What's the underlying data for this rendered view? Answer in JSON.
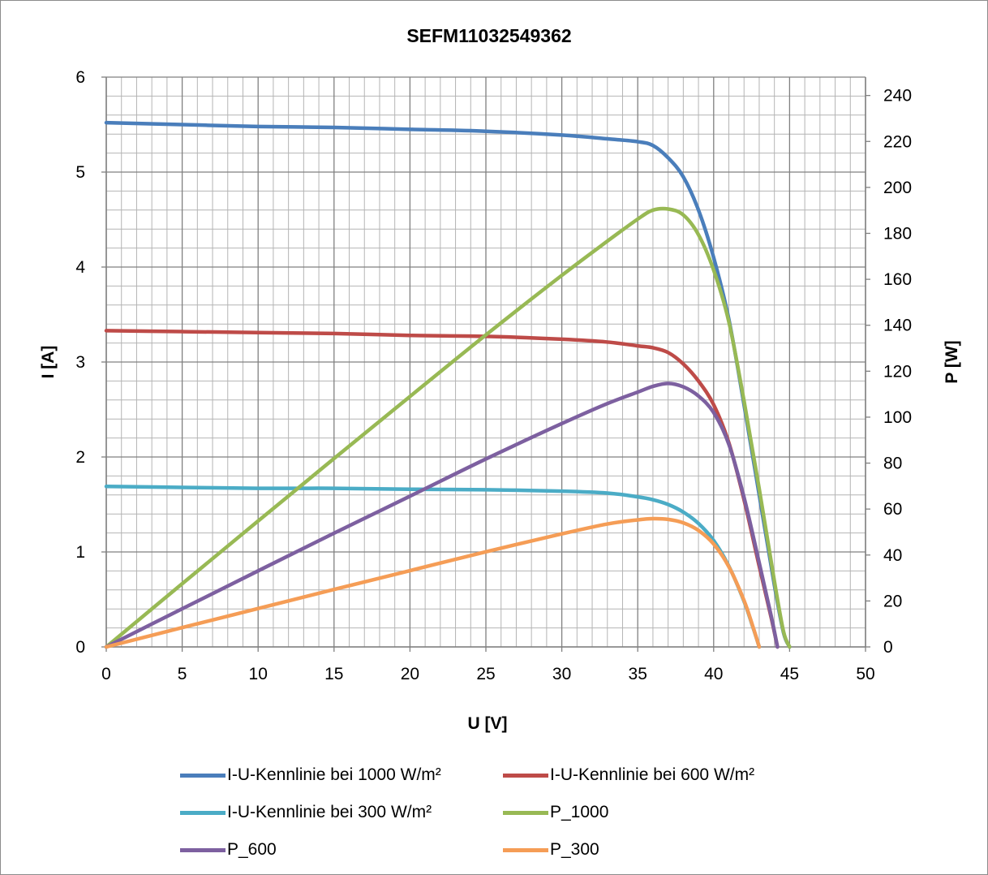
{
  "chart_data": {
    "type": "line",
    "title": "SEFM11032549362",
    "xlabel": "U [V]",
    "ylabel": "I [A]",
    "y2label": "P [W]",
    "xlim": [
      0,
      50
    ],
    "ylim": [
      0,
      6
    ],
    "y2lim": [
      0,
      248
    ],
    "x_ticks": [
      "0",
      "5",
      "10",
      "15",
      "20",
      "25",
      "30",
      "35",
      "40",
      "45",
      "50"
    ],
    "y_ticks": [
      "0",
      "1",
      "2",
      "3",
      "4",
      "5",
      "6"
    ],
    "y2_ticks": [
      "0",
      "20",
      "40",
      "60",
      "80",
      "100",
      "120",
      "140",
      "160",
      "180",
      "200",
      "220",
      "240"
    ],
    "grid": true,
    "legend_position": "bottom",
    "series": [
      {
        "name": "I-U-Kennlinie bei 1000 W/m²",
        "axis": "left",
        "color": "#4a7ebb",
        "points": [
          [
            0,
            5.52
          ],
          [
            5,
            5.5
          ],
          [
            10,
            5.48
          ],
          [
            15,
            5.47
          ],
          [
            20,
            5.45
          ],
          [
            25,
            5.43
          ],
          [
            30,
            5.39
          ],
          [
            33,
            5.35
          ],
          [
            35,
            5.32
          ],
          [
            36,
            5.28
          ],
          [
            37,
            5.15
          ],
          [
            38,
            4.95
          ],
          [
            39,
            4.6
          ],
          [
            40,
            4.1
          ],
          [
            41,
            3.45
          ],
          [
            42,
            2.55
          ],
          [
            43,
            1.6
          ],
          [
            44,
            0.65
          ],
          [
            44.6,
            0.15
          ],
          [
            45.0,
            0
          ]
        ]
      },
      {
        "name": "I-U-Kennlinie bei 600 W/m²",
        "axis": "left",
        "color": "#be4b48",
        "points": [
          [
            0,
            3.33
          ],
          [
            5,
            3.32
          ],
          [
            10,
            3.31
          ],
          [
            15,
            3.3
          ],
          [
            20,
            3.28
          ],
          [
            25,
            3.27
          ],
          [
            30,
            3.24
          ],
          [
            33,
            3.21
          ],
          [
            35,
            3.17
          ],
          [
            36,
            3.15
          ],
          [
            37,
            3.1
          ],
          [
            38,
            2.98
          ],
          [
            39,
            2.8
          ],
          [
            40,
            2.55
          ],
          [
            41,
            2.15
          ],
          [
            42,
            1.55
          ],
          [
            43,
            0.85
          ],
          [
            43.8,
            0.3
          ],
          [
            44.2,
            0
          ]
        ]
      },
      {
        "name": "I-U-Kennlinie bei 300 W/m²",
        "axis": "left",
        "color": "#4bacc6",
        "points": [
          [
            0,
            1.69
          ],
          [
            5,
            1.68
          ],
          [
            10,
            1.67
          ],
          [
            15,
            1.67
          ],
          [
            20,
            1.66
          ],
          [
            25,
            1.655
          ],
          [
            30,
            1.64
          ],
          [
            33,
            1.62
          ],
          [
            35,
            1.58
          ],
          [
            36,
            1.55
          ],
          [
            37,
            1.5
          ],
          [
            38,
            1.42
          ],
          [
            39,
            1.3
          ],
          [
            40,
            1.12
          ],
          [
            41,
            0.85
          ],
          [
            42,
            0.48
          ],
          [
            42.6,
            0.2
          ],
          [
            43.0,
            0
          ]
        ]
      },
      {
        "name": "P_1000",
        "axis": "right",
        "color": "#98b954",
        "points": [
          [
            0,
            0
          ],
          [
            5,
            27.5
          ],
          [
            10,
            54.8
          ],
          [
            15,
            82
          ],
          [
            20,
            109
          ],
          [
            25,
            135.8
          ],
          [
            30,
            161.7
          ],
          [
            33,
            176.6
          ],
          [
            35,
            186.2
          ],
          [
            36,
            190.1
          ],
          [
            37,
            190.6
          ],
          [
            38,
            188
          ],
          [
            39,
            179.4
          ],
          [
            40,
            164
          ],
          [
            41,
            141.5
          ],
          [
            42,
            107.1
          ],
          [
            43,
            68.8
          ],
          [
            44,
            28.6
          ],
          [
            44.6,
            6.7
          ],
          [
            45.0,
            0
          ]
        ]
      },
      {
        "name": "P_600",
        "axis": "right",
        "color": "#7d60a0",
        "points": [
          [
            0,
            0
          ],
          [
            5,
            16.6
          ],
          [
            10,
            33.1
          ],
          [
            15,
            49.5
          ],
          [
            20,
            65.6
          ],
          [
            25,
            81.8
          ],
          [
            30,
            97.2
          ],
          [
            33,
            105.9
          ],
          [
            35,
            110.9
          ],
          [
            36,
            113.4
          ],
          [
            37,
            114.7
          ],
          [
            38,
            113.2
          ],
          [
            39,
            109.2
          ],
          [
            40,
            102
          ],
          [
            41,
            88.2
          ],
          [
            42,
            65.1
          ],
          [
            43,
            36.6
          ],
          [
            43.8,
            13.1
          ],
          [
            44.2,
            0
          ]
        ]
      },
      {
        "name": "P_300",
        "axis": "right",
        "color": "#f59d56",
        "points": [
          [
            0,
            0
          ],
          [
            5,
            8.4
          ],
          [
            10,
            16.7
          ],
          [
            15,
            25
          ],
          [
            20,
            33.2
          ],
          [
            25,
            41.4
          ],
          [
            30,
            49.2
          ],
          [
            33,
            53.5
          ],
          [
            35,
            55.3
          ],
          [
            36,
            55.8
          ],
          [
            37,
            55.5
          ],
          [
            38,
            54
          ],
          [
            39,
            50.7
          ],
          [
            40,
            44.8
          ],
          [
            41,
            34.9
          ],
          [
            42,
            20.2
          ],
          [
            42.6,
            8.5
          ],
          [
            43.0,
            0
          ]
        ]
      }
    ]
  }
}
